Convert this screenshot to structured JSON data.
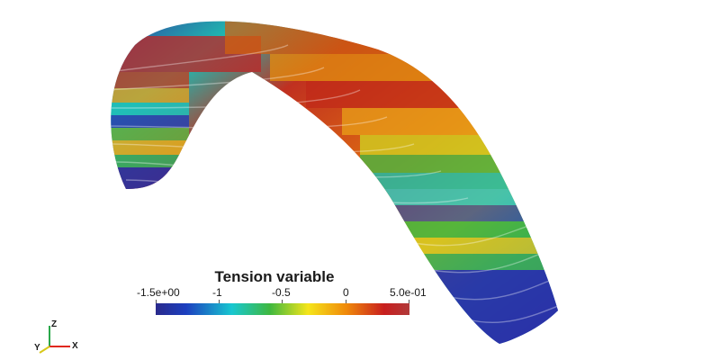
{
  "scalar_bar": {
    "title": "Tension variable",
    "ticks": [
      {
        "label": "-1.5e+00",
        "value": -1.5
      },
      {
        "label": "-1",
        "value": -1.0
      },
      {
        "label": "-0.5",
        "value": -0.5
      },
      {
        "label": "0",
        "value": 0.0
      },
      {
        "label": "5.0e-01",
        "value": 0.5
      }
    ],
    "range": [
      -1.5,
      0.5
    ],
    "colormap": [
      "#2a2a8c",
      "#1c3fbf",
      "#18c7d0",
      "#3fb83f",
      "#f5e51a",
      "#f08a0a",
      "#c81e1e",
      "#b03a3a"
    ]
  },
  "orientation_axes": {
    "x": "X",
    "y": "Y",
    "z": "Z",
    "colors": {
      "x": "#e0281e",
      "y": "#d8c81a",
      "z": "#2aa84a"
    }
  }
}
